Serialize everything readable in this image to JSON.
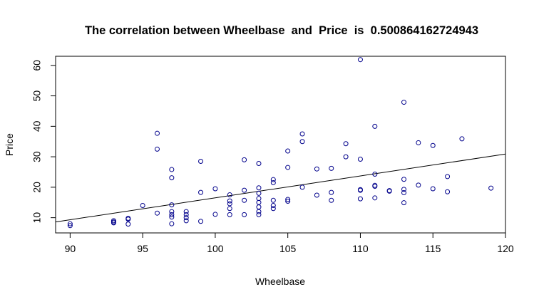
{
  "chart_data": {
    "type": "scatter",
    "title": "The correlation between Wheelbase  and  Price  is  0.500864162724943",
    "xlabel": "Wheelbase",
    "ylabel": "Price",
    "xlim": [
      89,
      120
    ],
    "ylim": [
      5,
      63
    ],
    "x_ticks": [
      90,
      95,
      100,
      105,
      110,
      115,
      120
    ],
    "y_ticks": [
      10,
      20,
      30,
      40,
      50,
      60
    ],
    "grid": false,
    "legend": "none",
    "point_color": "#00008b",
    "line_color": "#000000",
    "regression_line": {
      "x": [
        89,
        120
      ],
      "y": [
        8.6,
        30.9
      ]
    },
    "points": [
      {
        "x": 90,
        "y": 8.0
      },
      {
        "x": 90,
        "y": 7.4
      },
      {
        "x": 93,
        "y": 8.6
      },
      {
        "x": 93,
        "y": 8.3
      },
      {
        "x": 93,
        "y": 9.0
      },
      {
        "x": 94,
        "y": 9.8
      },
      {
        "x": 94,
        "y": 9.5
      },
      {
        "x": 94,
        "y": 7.9
      },
      {
        "x": 95,
        "y": 14.0
      },
      {
        "x": 96,
        "y": 37.7
      },
      {
        "x": 96,
        "y": 32.5
      },
      {
        "x": 96,
        "y": 11.5
      },
      {
        "x": 97,
        "y": 25.8
      },
      {
        "x": 97,
        "y": 23.1
      },
      {
        "x": 97,
        "y": 14.2
      },
      {
        "x": 97,
        "y": 12.0
      },
      {
        "x": 97,
        "y": 11.0
      },
      {
        "x": 97,
        "y": 10.2
      },
      {
        "x": 97,
        "y": 8.0
      },
      {
        "x": 98,
        "y": 12.0
      },
      {
        "x": 98,
        "y": 11.0
      },
      {
        "x": 98,
        "y": 10.0
      },
      {
        "x": 98,
        "y": 9.0
      },
      {
        "x": 99,
        "y": 28.5
      },
      {
        "x": 99,
        "y": 18.3
      },
      {
        "x": 99,
        "y": 8.8
      },
      {
        "x": 100,
        "y": 19.5
      },
      {
        "x": 100,
        "y": 11.1
      },
      {
        "x": 101,
        "y": 17.5
      },
      {
        "x": 101,
        "y": 15.5
      },
      {
        "x": 101,
        "y": 14.6
      },
      {
        "x": 101,
        "y": 13.0
      },
      {
        "x": 101,
        "y": 11.0
      },
      {
        "x": 102,
        "y": 29.0
      },
      {
        "x": 102,
        "y": 19.0
      },
      {
        "x": 102,
        "y": 15.7
      },
      {
        "x": 102,
        "y": 11.0
      },
      {
        "x": 103,
        "y": 27.8
      },
      {
        "x": 103,
        "y": 19.8
      },
      {
        "x": 103,
        "y": 18.0
      },
      {
        "x": 103,
        "y": 16.3
      },
      {
        "x": 103,
        "y": 15.0
      },
      {
        "x": 103,
        "y": 13.5
      },
      {
        "x": 103,
        "y": 12.0
      },
      {
        "x": 103,
        "y": 11.0
      },
      {
        "x": 104,
        "y": 22.5
      },
      {
        "x": 104,
        "y": 21.5
      },
      {
        "x": 104,
        "y": 15.7
      },
      {
        "x": 104,
        "y": 14.0
      },
      {
        "x": 104,
        "y": 13.0
      },
      {
        "x": 105,
        "y": 31.9
      },
      {
        "x": 105,
        "y": 26.5
      },
      {
        "x": 105,
        "y": 16.0
      },
      {
        "x": 105,
        "y": 15.4
      },
      {
        "x": 106,
        "y": 37.5
      },
      {
        "x": 106,
        "y": 35.0
      },
      {
        "x": 106,
        "y": 20.0
      },
      {
        "x": 107,
        "y": 26.0
      },
      {
        "x": 107,
        "y": 17.4
      },
      {
        "x": 108,
        "y": 26.2
      },
      {
        "x": 108,
        "y": 18.3
      },
      {
        "x": 108,
        "y": 15.7
      },
      {
        "x": 109,
        "y": 34.3
      },
      {
        "x": 109,
        "y": 30.0
      },
      {
        "x": 110,
        "y": 61.9
      },
      {
        "x": 110,
        "y": 29.2
      },
      {
        "x": 110,
        "y": 19.2
      },
      {
        "x": 110,
        "y": 19.0
      },
      {
        "x": 110,
        "y": 16.2
      },
      {
        "x": 111,
        "y": 40.0
      },
      {
        "x": 111,
        "y": 24.3
      },
      {
        "x": 111,
        "y": 20.6
      },
      {
        "x": 111,
        "y": 20.3
      },
      {
        "x": 111,
        "y": 16.5
      },
      {
        "x": 112,
        "y": 18.9
      },
      {
        "x": 112,
        "y": 18.7
      },
      {
        "x": 113,
        "y": 47.9
      },
      {
        "x": 113,
        "y": 22.6
      },
      {
        "x": 113,
        "y": 19.3
      },
      {
        "x": 113,
        "y": 18.2
      },
      {
        "x": 113,
        "y": 14.9
      },
      {
        "x": 114,
        "y": 34.6
      },
      {
        "x": 114,
        "y": 20.7
      },
      {
        "x": 115,
        "y": 33.7
      },
      {
        "x": 115,
        "y": 19.5
      },
      {
        "x": 116,
        "y": 23.5
      },
      {
        "x": 116,
        "y": 18.5
      },
      {
        "x": 117,
        "y": 35.9
      },
      {
        "x": 119,
        "y": 19.7
      }
    ]
  }
}
